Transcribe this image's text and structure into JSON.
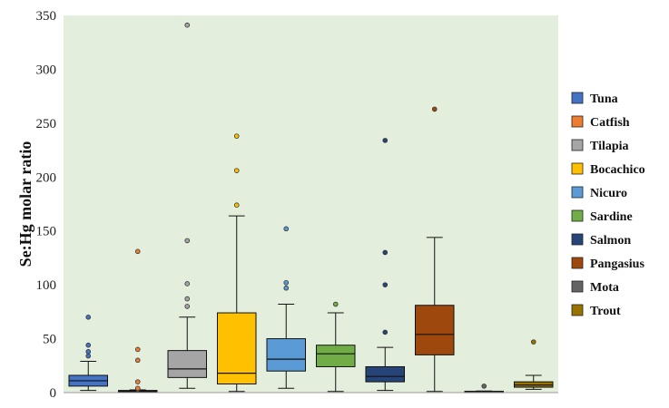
{
  "chart_data": {
    "type": "box",
    "ylabel": "Se:Hg molar ratio",
    "ylim": [
      0,
      350
    ],
    "yticks": [
      "0",
      "50",
      "100",
      "150",
      "200",
      "250",
      "300",
      "350"
    ],
    "plot_background": "#e3efdc",
    "legend_position": "right",
    "series": [
      {
        "name": "Tuna",
        "color": "#4472c4",
        "min": 2,
        "q1": 6,
        "median": 11,
        "q3": 16,
        "max": 29,
        "outliers": [
          34,
          38,
          44,
          70
        ]
      },
      {
        "name": "Catfish",
        "color": "#ed7d31",
        "min": 0.5,
        "q1": 1,
        "median": 1.5,
        "q3": 2,
        "max": 2.5,
        "outliers": [
          3,
          4,
          10,
          30,
          40,
          131
        ]
      },
      {
        "name": "Tilapia",
        "color": "#a5a5a5",
        "min": 4,
        "q1": 14,
        "median": 22,
        "q3": 39,
        "max": 70,
        "outliers": [
          80,
          87,
          101,
          141,
          341
        ]
      },
      {
        "name": "Bocachico",
        "color": "#ffc000",
        "min": 1,
        "q1": 8,
        "median": 18,
        "q3": 74,
        "max": 164,
        "outliers": [
          174,
          206,
          238
        ]
      },
      {
        "name": "Nicuro",
        "color": "#5b9bd5",
        "min": 4,
        "q1": 20,
        "median": 31,
        "q3": 50,
        "max": 82,
        "outliers": [
          97,
          102,
          152
        ]
      },
      {
        "name": "Sardine",
        "color": "#70ad47",
        "min": 1,
        "q1": 24,
        "median": 36,
        "q3": 44,
        "max": 74,
        "outliers": [
          82
        ]
      },
      {
        "name": "Salmon",
        "color": "#264478",
        "min": 2,
        "q1": 10,
        "median": 15,
        "q3": 24,
        "max": 42,
        "outliers": [
          56,
          100,
          130,
          234
        ]
      },
      {
        "name": "Pangasius",
        "color": "#9e480e",
        "min": 1,
        "q1": 35,
        "median": 54,
        "q3": 81,
        "max": 144,
        "outliers": [
          263
        ]
      },
      {
        "name": "Mota",
        "color": "#636363",
        "min": 0.5,
        "q1": 0.8,
        "median": 1,
        "q3": 1.2,
        "max": 1.5,
        "outliers": [
          6
        ]
      },
      {
        "name": "Trout",
        "color": "#997300",
        "min": 3,
        "q1": 5,
        "median": 7,
        "q3": 10,
        "max": 16,
        "outliers": [
          47
        ]
      }
    ]
  }
}
